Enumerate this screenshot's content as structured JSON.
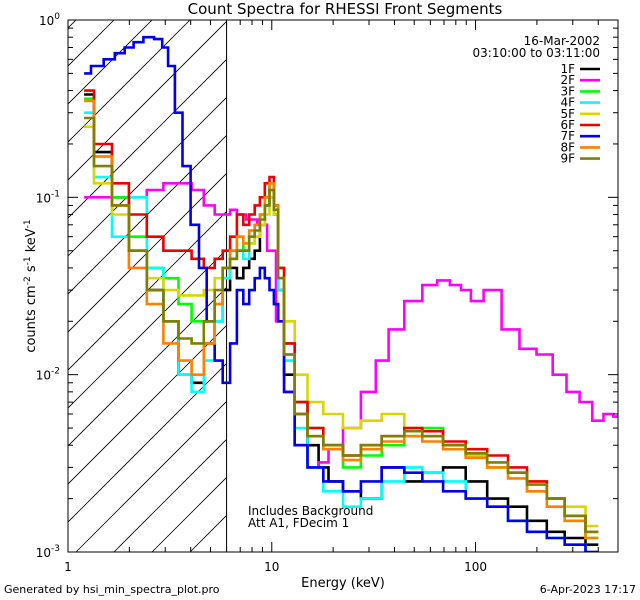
{
  "chart_data": {
    "type": "line",
    "title": "Count Spectra for RHESSI Front Segments",
    "xlabel": "Energy (keV)",
    "ylabel_main": "counts cm",
    "ylabel_unit_s": " s",
    "ylabel_unit_kev": " keV",
    "ylabel_exp": "-2",
    "ylabel_exp2": "-1",
    "xscale": "log",
    "yscale": "log",
    "xlim": [
      1,
      500
    ],
    "ylim": [
      0.001,
      1
    ],
    "x_tick_labels": [
      "1",
      "10",
      "100"
    ],
    "x_tick_values": [
      1,
      10,
      100
    ],
    "y_tick_mantissa": [
      "10",
      "10",
      "10",
      "10"
    ],
    "y_tick_exponent": [
      "0",
      "-1",
      "-2",
      "-3"
    ],
    "y_tick_values": [
      1,
      0.1,
      0.01,
      0.001
    ],
    "date": "16-Mar-2002",
    "time_range": "03:10:00 to 03:11:00",
    "hatched_region_max_kev": 6,
    "annotation_line1": "Includes Background",
    "annotation_line2": "Att A1, FDecim 1",
    "series": [
      {
        "name": "1F",
        "color": "#000000",
        "energies": [
          1.2,
          1.5,
          1.8,
          2.2,
          2.7,
          3.2,
          3.8,
          4.3,
          5,
          5.5,
          6,
          6.5,
          7,
          7.5,
          8,
          8.5,
          9,
          9.5,
          10,
          10.5,
          11,
          12,
          14,
          16,
          18,
          20,
          25,
          30,
          40,
          50,
          60,
          80,
          100,
          130,
          160,
          200,
          250,
          300,
          400
        ],
        "values": [
          0.38,
          0.18,
          0.1,
          0.05,
          0.03,
          0.02,
          0.01,
          0.009,
          0.015,
          0.02,
          0.03,
          0.04,
          0.035,
          0.04,
          0.045,
          0.05,
          0.07,
          0.09,
          0.1,
          0.08,
          0.03,
          0.01,
          0.006,
          0.004,
          0.003,
          0.0025,
          0.0022,
          0.002,
          0.003,
          0.0025,
          0.0028,
          0.003,
          0.0025,
          0.002,
          0.0018,
          0.0015,
          0.0013,
          0.0012,
          0.0011
        ]
      },
      {
        "name": "2F",
        "color": "#ff00ff",
        "energies": [
          1.2,
          1.5,
          1.8,
          2.2,
          2.7,
          3.2,
          3.8,
          4.3,
          5,
          5.5,
          6,
          6.5,
          7,
          8,
          9,
          10,
          11,
          12,
          14,
          16,
          18,
          20,
          25,
          30,
          35,
          40,
          50,
          60,
          70,
          80,
          90,
          100,
          120,
          150,
          180,
          220,
          260,
          300,
          350,
          400,
          450,
          500
        ],
        "values": [
          0.1,
          0.1,
          0.1,
          0.1,
          0.11,
          0.12,
          0.12,
          0.11,
          0.09,
          0.08,
          0.08,
          0.085,
          0.08,
          0.075,
          0.07,
          0.05,
          0.02,
          0.008,
          0.004,
          0.003,
          0.0032,
          0.0038,
          0.005,
          0.008,
          0.012,
          0.018,
          0.026,
          0.032,
          0.034,
          0.032,
          0.03,
          0.026,
          0.03,
          0.018,
          0.014,
          0.013,
          0.01,
          0.008,
          0.007,
          0.0055,
          0.006,
          0.0058
        ]
      },
      {
        "name": "3F",
        "color": "#00ff00",
        "energies": [
          1.2,
          1.5,
          1.8,
          2.2,
          2.7,
          3.2,
          3.8,
          4.3,
          5,
          5.5,
          6,
          6.5,
          7,
          7.5,
          8,
          8.5,
          9,
          9.5,
          10,
          10.5,
          11,
          12,
          14,
          16,
          20,
          25,
          30,
          40,
          50,
          60,
          80,
          100,
          130,
          160,
          200,
          250,
          300,
          400
        ],
        "values": [
          0.36,
          0.17,
          0.1,
          0.06,
          0.04,
          0.035,
          0.025,
          0.02,
          0.02,
          0.025,
          0.035,
          0.05,
          0.06,
          0.05,
          0.06,
          0.07,
          0.08,
          0.1,
          0.12,
          0.09,
          0.04,
          0.015,
          0.007,
          0.005,
          0.004,
          0.003,
          0.0035,
          0.004,
          0.0045,
          0.005,
          0.004,
          0.0035,
          0.003,
          0.0028,
          0.0022,
          0.002,
          0.0015,
          0.0012
        ]
      },
      {
        "name": "4F",
        "color": "#00ffff",
        "energies": [
          1.2,
          1.5,
          1.8,
          2.2,
          2.7,
          3.2,
          3.8,
          4.3,
          5,
          5.5,
          6,
          6.5,
          7,
          7.5,
          8,
          8.5,
          9,
          9.5,
          10,
          10.5,
          11,
          12,
          14,
          16,
          20,
          25,
          30,
          40,
          50,
          60,
          80,
          100,
          130,
          160,
          200,
          250,
          300,
          400
        ],
        "values": [
          0.3,
          0.13,
          0.06,
          0.1,
          0.04,
          0.02,
          0.01,
          0.008,
          0.012,
          0.02,
          0.035,
          0.045,
          0.05,
          0.045,
          0.055,
          0.06,
          0.07,
          0.09,
          0.11,
          0.08,
          0.03,
          0.012,
          0.005,
          0.003,
          0.0022,
          0.0018,
          0.002,
          0.0025,
          0.003,
          0.0028,
          0.0025,
          0.002,
          0.0018,
          0.0015,
          0.0013,
          0.0012,
          0.0011,
          0.001
        ]
      },
      {
        "name": "5F",
        "color": "#d8d800",
        "energies": [
          1.2,
          1.5,
          1.8,
          2.2,
          2.7,
          3.2,
          3.8,
          4.3,
          5,
          5.5,
          6,
          6.5,
          7,
          7.5,
          8,
          8.5,
          9,
          9.5,
          10,
          10.5,
          11,
          12,
          14,
          16,
          20,
          25,
          30,
          40,
          50,
          60,
          80,
          100,
          130,
          160,
          200,
          250,
          300,
          400
        ],
        "values": [
          0.25,
          0.12,
          0.08,
          0.05,
          0.035,
          0.03,
          0.028,
          0.028,
          0.03,
          0.035,
          0.04,
          0.045,
          0.05,
          0.05,
          0.055,
          0.06,
          0.07,
          0.08,
          0.1,
          0.08,
          0.04,
          0.02,
          0.01,
          0.007,
          0.006,
          0.005,
          0.0055,
          0.006,
          0.005,
          0.0045,
          0.004,
          0.0035,
          0.003,
          0.0028,
          0.0025,
          0.002,
          0.0018,
          0.0014
        ]
      },
      {
        "name": "6F",
        "color": "#ee0000",
        "energies": [
          1.2,
          1.5,
          1.8,
          2.2,
          2.7,
          3.2,
          3.8,
          4.3,
          5,
          5.5,
          6,
          6.5,
          7,
          7.5,
          8,
          8.5,
          9,
          9.5,
          10,
          10.5,
          11,
          12,
          14,
          16,
          20,
          25,
          30,
          40,
          50,
          60,
          80,
          100,
          130,
          160,
          200,
          250,
          300,
          400
        ],
        "values": [
          0.4,
          0.2,
          0.12,
          0.08,
          0.06,
          0.05,
          0.05,
          0.045,
          0.04,
          0.045,
          0.05,
          0.06,
          0.08,
          0.07,
          0.08,
          0.09,
          0.1,
          0.12,
          0.13,
          0.09,
          0.04,
          0.015,
          0.007,
          0.005,
          0.004,
          0.0035,
          0.004,
          0.0045,
          0.005,
          0.0048,
          0.0042,
          0.0038,
          0.0035,
          0.003,
          0.0025,
          0.002,
          0.0016,
          0.0013
        ]
      },
      {
        "name": "7F",
        "color": "#0000ee",
        "energies": [
          1.2,
          1.4,
          1.6,
          1.8,
          2.0,
          2.2,
          2.5,
          2.8,
          3.0,
          3.2,
          3.5,
          3.8,
          4.2,
          4.6,
          5.0,
          5.5,
          6,
          6.5,
          7,
          7.5,
          8,
          8.5,
          9,
          9.5,
          10,
          10.5,
          11,
          12,
          14,
          16,
          20,
          25,
          30,
          40,
          50,
          60,
          80,
          100,
          130,
          160,
          200,
          250,
          300,
          400
        ],
        "values": [
          0.5,
          0.55,
          0.6,
          0.65,
          0.7,
          0.75,
          0.8,
          0.78,
          0.7,
          0.55,
          0.3,
          0.15,
          0.07,
          0.04,
          0.02,
          0.012,
          0.009,
          0.015,
          0.03,
          0.025,
          0.03,
          0.035,
          0.04,
          0.035,
          0.03,
          0.025,
          0.02,
          0.008,
          0.004,
          0.003,
          0.0025,
          0.0022,
          0.0025,
          0.003,
          0.0028,
          0.0025,
          0.0022,
          0.002,
          0.0018,
          0.0015,
          0.0013,
          0.0012,
          0.0011,
          0.001
        ]
      },
      {
        "name": "8F",
        "color": "#ff8000",
        "energies": [
          1.2,
          1.5,
          1.8,
          2.2,
          2.7,
          3.2,
          3.8,
          4.3,
          5,
          5.5,
          6,
          6.5,
          7,
          7.5,
          8,
          8.5,
          9,
          9.5,
          10,
          10.5,
          11,
          12,
          14,
          16,
          20,
          25,
          30,
          40,
          50,
          60,
          80,
          100,
          130,
          160,
          200,
          250,
          300,
          400
        ],
        "values": [
          0.35,
          0.17,
          0.09,
          0.04,
          0.025,
          0.015,
          0.012,
          0.01,
          0.015,
          0.025,
          0.04,
          0.05,
          0.06,
          0.055,
          0.065,
          0.07,
          0.08,
          0.1,
          0.12,
          0.09,
          0.035,
          0.013,
          0.006,
          0.0045,
          0.0038,
          0.0033,
          0.0038,
          0.0042,
          0.0045,
          0.0042,
          0.0038,
          0.0034,
          0.003,
          0.0026,
          0.0022,
          0.0018,
          0.0015,
          0.0012
        ]
      },
      {
        "name": "9F",
        "color": "#808000",
        "energies": [
          1.2,
          1.5,
          1.8,
          2.2,
          2.7,
          3.2,
          3.8,
          4.3,
          5,
          5.5,
          6,
          6.5,
          7,
          7.5,
          8,
          8.5,
          9,
          9.5,
          10,
          10.5,
          11,
          12,
          14,
          16,
          20,
          25,
          30,
          40,
          50,
          60,
          80,
          100,
          130,
          160,
          200,
          250,
          300,
          400
        ],
        "values": [
          0.28,
          0.15,
          0.09,
          0.05,
          0.03,
          0.02,
          0.016,
          0.015,
          0.02,
          0.03,
          0.04,
          0.045,
          0.05,
          0.05,
          0.06,
          0.065,
          0.075,
          0.09,
          0.11,
          0.085,
          0.035,
          0.013,
          0.006,
          0.0045,
          0.004,
          0.0035,
          0.004,
          0.0045,
          0.0048,
          0.0045,
          0.004,
          0.0036,
          0.0032,
          0.0028,
          0.0024,
          0.002,
          0.0016,
          0.0013
        ]
      }
    ]
  },
  "footer": {
    "generated_by": "Generated by hsi_min_spectra_plot.pro",
    "timestamp": "6-Apr-2023 17:17"
  }
}
